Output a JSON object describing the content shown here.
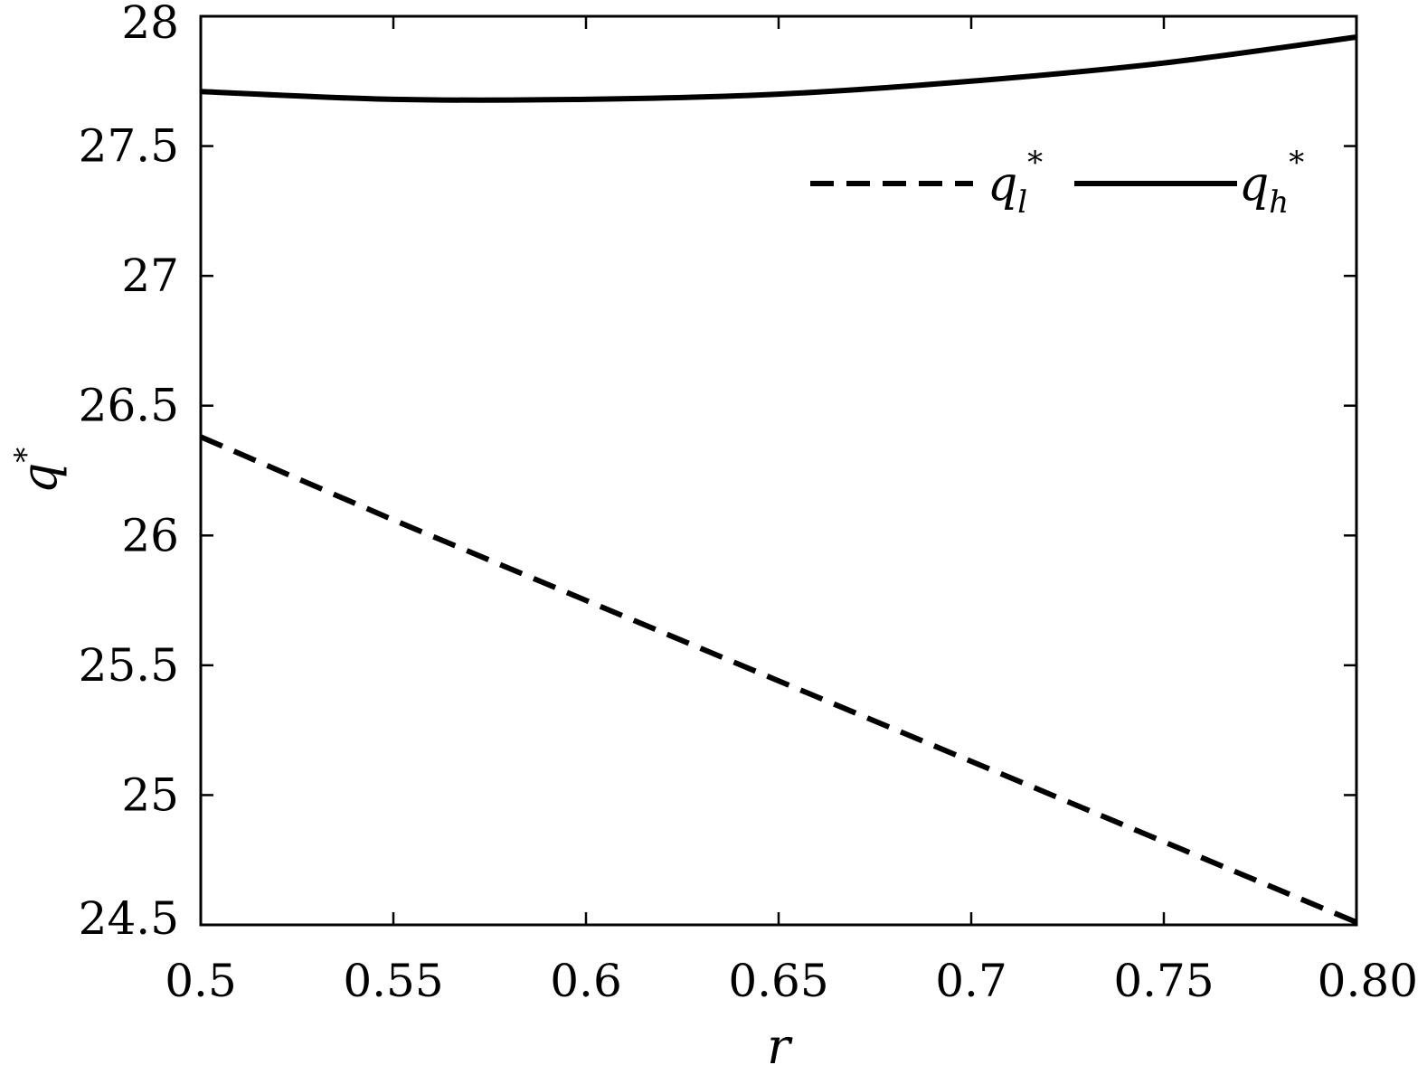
{
  "chart_data": {
    "type": "line",
    "xlabel": "r",
    "ylabel": {
      "base": "q",
      "sup": "*"
    },
    "xlim": [
      0.5,
      0.8
    ],
    "ylim": [
      24.5,
      28
    ],
    "x_ticks": [
      0.5,
      0.55,
      0.6,
      0.65,
      0.7,
      0.75,
      0.8
    ],
    "x_tick_labels": [
      "0.5",
      "0.55",
      "0.6",
      "0.65",
      "0.7",
      "0.75",
      "0.80"
    ],
    "y_ticks": [
      24.5,
      25,
      25.5,
      26,
      26.5,
      27,
      27.5,
      28
    ],
    "y_tick_labels": [
      "24.5",
      "25",
      "25.5",
      "26",
      "26.5",
      "27",
      "27.5",
      "28"
    ],
    "grid": false,
    "legend_placement": "top-right",
    "series": [
      {
        "name": "q_l*",
        "legend": {
          "base": "q",
          "sub": "l",
          "sup": "*"
        },
        "style": "dashed",
        "x": [
          0.5,
          0.55,
          0.6,
          0.65,
          0.7,
          0.75,
          0.8
        ],
        "y": [
          26.38,
          26.06,
          25.75,
          25.44,
          25.13,
          24.82,
          24.51
        ]
      },
      {
        "name": "q_h*",
        "legend": {
          "base": "q",
          "sub": "h",
          "sup": "*"
        },
        "style": "solid",
        "x": [
          0.5,
          0.55,
          0.6,
          0.65,
          0.7,
          0.75,
          0.8
        ],
        "y": [
          27.71,
          27.68,
          27.68,
          27.7,
          27.75,
          27.82,
          27.92
        ]
      }
    ]
  }
}
